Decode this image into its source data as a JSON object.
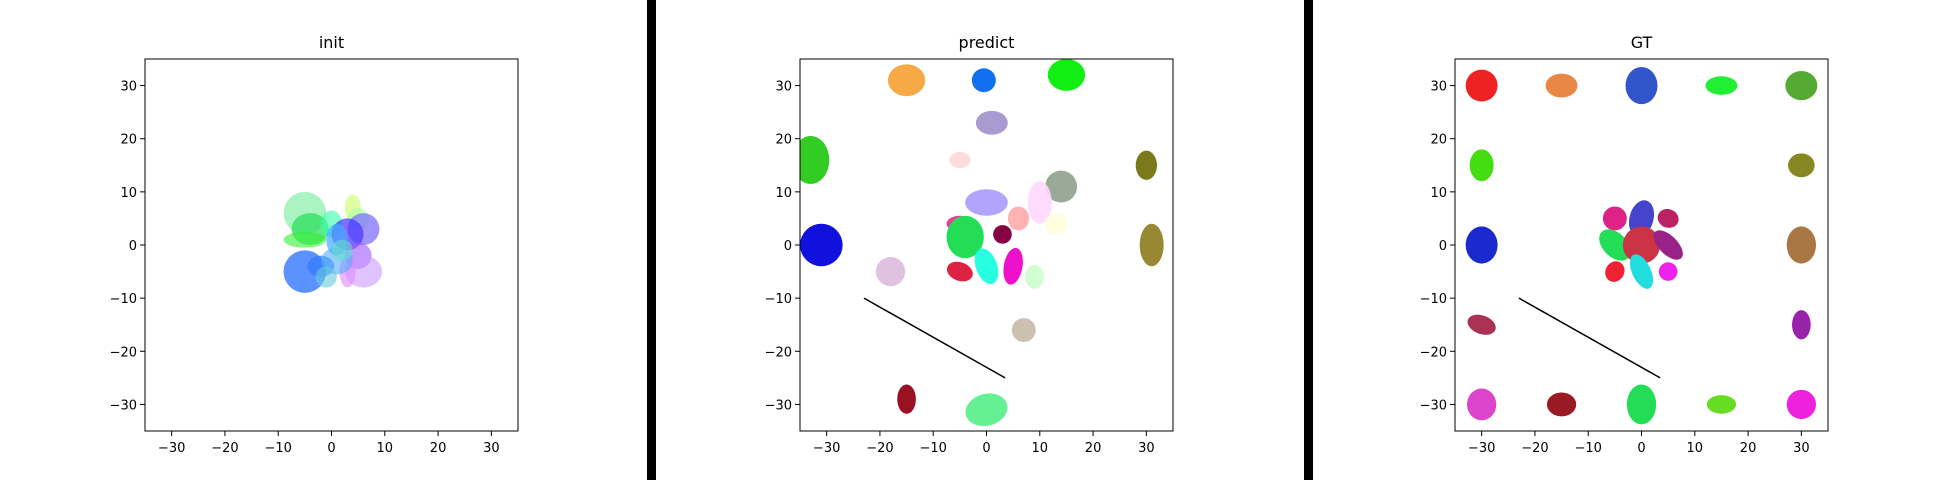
{
  "chart_data": [
    {
      "type": "scatter",
      "title": "init",
      "xlabel": "",
      "ylabel": "",
      "xlim": [
        -35,
        35
      ],
      "ylim": [
        -35,
        35
      ],
      "xticks": [
        -30,
        -20,
        -10,
        0,
        10,
        20,
        30
      ],
      "yticks": [
        -30,
        -20,
        -10,
        0,
        10,
        20,
        30
      ],
      "grid": false,
      "ellipses": [
        {
          "x": -5,
          "y": 6,
          "w": 8,
          "h": 8,
          "angle": 0,
          "color": "#88f0a8",
          "alpha": 0.7
        },
        {
          "x": -4,
          "y": 3,
          "w": 7,
          "h": 6,
          "angle": 0,
          "color": "#22dd55",
          "alpha": 0.7
        },
        {
          "x": 4,
          "y": 7,
          "w": 3,
          "h": 5,
          "angle": 0,
          "color": "#ccff66",
          "alpha": 0.6
        },
        {
          "x": 5,
          "y": 5,
          "w": 4,
          "h": 4,
          "angle": 0,
          "color": "#aaffaa",
          "alpha": 0.6
        },
        {
          "x": 0,
          "y": 4,
          "w": 4,
          "h": 5,
          "angle": 0,
          "color": "#33ffaa",
          "alpha": 0.6
        },
        {
          "x": -5,
          "y": 1,
          "w": 8,
          "h": 3,
          "angle": 0,
          "color": "#33ee33",
          "alpha": 0.6
        },
        {
          "x": 6,
          "y": 3,
          "w": 6,
          "h": 6,
          "angle": 0,
          "color": "#7766ff",
          "alpha": 0.7
        },
        {
          "x": 3,
          "y": 2,
          "w": 6,
          "h": 6,
          "angle": 0,
          "color": "#4433ff",
          "alpha": 0.7
        },
        {
          "x": 1,
          "y": 1,
          "w": 4,
          "h": 6,
          "angle": 0,
          "color": "#44aaff",
          "alpha": 0.7
        },
        {
          "x": 5,
          "y": -2,
          "w": 5,
          "h": 5,
          "angle": 0,
          "color": "#9955ff",
          "alpha": 0.6
        },
        {
          "x": 6,
          "y": -5,
          "w": 7,
          "h": 6,
          "angle": 0,
          "color": "#cc99ff",
          "alpha": 0.6
        },
        {
          "x": 3,
          "y": -5,
          "w": 3,
          "h": 6,
          "angle": 0,
          "color": "#dd88ff",
          "alpha": 0.6
        },
        {
          "x": -2,
          "y": -4,
          "w": 5,
          "h": 4,
          "angle": 0,
          "color": "#2288ee",
          "alpha": 0.7
        },
        {
          "x": -5,
          "y": -5,
          "w": 8,
          "h": 8,
          "angle": 0,
          "color": "#3377ff",
          "alpha": 0.8
        },
        {
          "x": 1,
          "y": -3,
          "w": 6,
          "h": 5,
          "angle": 0,
          "color": "#55aaff",
          "alpha": 0.6
        },
        {
          "x": -1,
          "y": -6,
          "w": 4,
          "h": 4,
          "angle": 0,
          "color": "#66ccdd",
          "alpha": 0.6
        },
        {
          "x": 2,
          "y": -1,
          "w": 4,
          "h": 4,
          "angle": 0,
          "color": "#66ddcc",
          "alpha": 0.6
        }
      ],
      "lines": []
    },
    {
      "type": "scatter",
      "title": "predict",
      "xlabel": "",
      "ylabel": "",
      "xlim": [
        -35,
        35
      ],
      "ylim": [
        -35,
        35
      ],
      "xticks": [
        -30,
        -20,
        -10,
        0,
        10,
        20,
        30
      ],
      "yticks": [
        -30,
        -20,
        -10,
        0,
        10,
        20,
        30
      ],
      "grid": false,
      "ellipses": [
        {
          "x": -15,
          "y": 31,
          "w": 7,
          "h": 6,
          "angle": 0,
          "color": "#f5a030",
          "alpha": 0.9
        },
        {
          "x": -0.5,
          "y": 31,
          "w": 4.5,
          "h": 4.5,
          "angle": 0,
          "color": "#1170ee",
          "alpha": 1.0
        },
        {
          "x": 15,
          "y": 32,
          "w": 7,
          "h": 6,
          "angle": 0,
          "color": "#11ee11",
          "alpha": 1.0
        },
        {
          "x": 1,
          "y": 23,
          "w": 6,
          "h": 4.5,
          "angle": 0,
          "color": "#a090cc",
          "alpha": 0.9
        },
        {
          "x": -5,
          "y": 16,
          "w": 4,
          "h": 3,
          "angle": 0,
          "color": "#ffd8d8",
          "alpha": 0.9
        },
        {
          "x": -33,
          "y": 16,
          "w": 7,
          "h": 9,
          "angle": 0,
          "color": "#33cc22",
          "alpha": 1.0
        },
        {
          "x": 30,
          "y": 15,
          "w": 4,
          "h": 5.5,
          "angle": 0,
          "color": "#7a7a1a",
          "alpha": 1.0
        },
        {
          "x": 14,
          "y": 11,
          "w": 6,
          "h": 6,
          "angle": 0,
          "color": "#99aa99",
          "alpha": 1.0
        },
        {
          "x": 10,
          "y": 8,
          "w": 4.5,
          "h": 8,
          "angle": 0,
          "color": "#ffd8ff",
          "alpha": 0.9
        },
        {
          "x": 0,
          "y": 8,
          "w": 8,
          "h": 5,
          "angle": 0,
          "color": "#aa99ff",
          "alpha": 0.9
        },
        {
          "x": 13,
          "y": 4,
          "w": 4,
          "h": 4,
          "angle": 0,
          "color": "#ffffdd",
          "alpha": 0.9
        },
        {
          "x": 6,
          "y": 5,
          "w": 4,
          "h": 4.5,
          "angle": 0,
          "color": "#ffaaaa",
          "alpha": 0.9
        },
        {
          "x": -5,
          "y": 4,
          "w": 5,
          "h": 3,
          "angle": 0,
          "color": "#ee2288",
          "alpha": 0.9
        },
        {
          "x": -4,
          "y": 1.5,
          "w": 7,
          "h": 8,
          "angle": 0,
          "color": "#22dd55",
          "alpha": 1.0
        },
        {
          "x": 3,
          "y": 2,
          "w": 3.5,
          "h": 3.5,
          "angle": 0,
          "color": "#880044",
          "alpha": 1.0
        },
        {
          "x": -31,
          "y": 0,
          "w": 8,
          "h": 8,
          "angle": 0,
          "color": "#1111dd",
          "alpha": 1.0
        },
        {
          "x": 31,
          "y": 0,
          "w": 4.5,
          "h": 8,
          "angle": 0,
          "color": "#998833",
          "alpha": 1.0
        },
        {
          "x": -18,
          "y": -5,
          "w": 5.5,
          "h": 5.5,
          "angle": 0,
          "color": "#ddbbdd",
          "alpha": 0.9
        },
        {
          "x": -5,
          "y": -5,
          "w": 5,
          "h": 3.5,
          "angle": -20,
          "color": "#dd2244",
          "alpha": 1.0
        },
        {
          "x": 0,
          "y": -4,
          "w": 4,
          "h": 7,
          "angle": 20,
          "color": "#11ffdd",
          "alpha": 0.9
        },
        {
          "x": 5,
          "y": -4,
          "w": 3.5,
          "h": 7,
          "angle": -10,
          "color": "#ee11cc",
          "alpha": 1.0
        },
        {
          "x": 9,
          "y": -6,
          "w": 3.5,
          "h": 4.5,
          "angle": 0,
          "color": "#ccffcc",
          "alpha": 0.9
        },
        {
          "x": 7,
          "y": -16,
          "w": 4.5,
          "h": 4.5,
          "angle": 0,
          "color": "#ccc0b0",
          "alpha": 1.0
        },
        {
          "x": -15,
          "y": -29,
          "w": 3.5,
          "h": 5.5,
          "angle": 0,
          "color": "#991122",
          "alpha": 1.0
        },
        {
          "x": 0,
          "y": -31,
          "w": 8,
          "h": 6,
          "angle": 15,
          "color": "#55ee88",
          "alpha": 0.9
        }
      ],
      "lines": [
        {
          "x": [
            -23,
            3.5
          ],
          "y": [
            -10,
            -25
          ],
          "color": "#000000"
        }
      ]
    },
    {
      "type": "scatter",
      "title": "GT",
      "xlabel": "",
      "ylabel": "",
      "xlim": [
        -35,
        35
      ],
      "ylim": [
        -35,
        35
      ],
      "xticks": [
        -30,
        -20,
        -10,
        0,
        10,
        20,
        30
      ],
      "yticks": [
        -30,
        -20,
        -10,
        0,
        10,
        20,
        30
      ],
      "grid": false,
      "ellipses": [
        {
          "x": -30,
          "y": 30,
          "w": 6,
          "h": 6,
          "angle": 0,
          "color": "#ee2222",
          "alpha": 1.0
        },
        {
          "x": -15,
          "y": 30,
          "w": 6,
          "h": 4.5,
          "angle": 0,
          "color": "#e88844",
          "alpha": 1.0
        },
        {
          "x": 0,
          "y": 30,
          "w": 6,
          "h": 7,
          "angle": 0,
          "color": "#3355cc",
          "alpha": 1.0
        },
        {
          "x": 15,
          "y": 30,
          "w": 6,
          "h": 3.5,
          "angle": 0,
          "color": "#22ee33",
          "alpha": 1.0
        },
        {
          "x": 30,
          "y": 30,
          "w": 6,
          "h": 5.5,
          "angle": 0,
          "color": "#55aa33",
          "alpha": 1.0
        },
        {
          "x": -30,
          "y": 15,
          "w": 4.5,
          "h": 6,
          "angle": 0,
          "color": "#44dd11",
          "alpha": 1.0
        },
        {
          "x": 30,
          "y": 15,
          "w": 5,
          "h": 4.5,
          "angle": 0,
          "color": "#888822",
          "alpha": 1.0
        },
        {
          "x": -5,
          "y": 5,
          "w": 4.5,
          "h": 4.5,
          "angle": 0,
          "color": "#dd2288",
          "alpha": 1.0
        },
        {
          "x": 0,
          "y": 5,
          "w": 4.5,
          "h": 7,
          "angle": -15,
          "color": "#4444cc",
          "alpha": 1.0
        },
        {
          "x": 5,
          "y": 5,
          "w": 4,
          "h": 3.5,
          "angle": -20,
          "color": "#bb2266",
          "alpha": 1.0
        },
        {
          "x": -5,
          "y": 0,
          "w": 4.5,
          "h": 7,
          "angle": 45,
          "color": "#22dd55",
          "alpha": 1.0
        },
        {
          "x": 0,
          "y": 0,
          "w": 7,
          "h": 7,
          "angle": 0,
          "color": "#cc3344",
          "alpha": 1.0
        },
        {
          "x": 5,
          "y": 0,
          "w": 3.5,
          "h": 7,
          "angle": 45,
          "color": "#992288",
          "alpha": 1.0
        },
        {
          "x": -30,
          "y": 0,
          "w": 6,
          "h": 7,
          "angle": 0,
          "color": "#1a2acc",
          "alpha": 1.0
        },
        {
          "x": 30,
          "y": 0,
          "w": 5.5,
          "h": 7,
          "angle": 0,
          "color": "#aa7744",
          "alpha": 1.0
        },
        {
          "x": -5,
          "y": -5,
          "w": 3.5,
          "h": 4,
          "angle": -30,
          "color": "#ee2233",
          "alpha": 1.0
        },
        {
          "x": 0,
          "y": -5,
          "w": 3.5,
          "h": 7,
          "angle": 25,
          "color": "#22dddd",
          "alpha": 1.0
        },
        {
          "x": 5,
          "y": -5,
          "w": 3.5,
          "h": 3.5,
          "angle": 0,
          "color": "#ee22ee",
          "alpha": 1.0
        },
        {
          "x": -30,
          "y": -15,
          "w": 5.5,
          "h": 3.5,
          "angle": -20,
          "color": "#aa3355",
          "alpha": 1.0
        },
        {
          "x": 30,
          "y": -15,
          "w": 3.5,
          "h": 5.5,
          "angle": 0,
          "color": "#9922aa",
          "alpha": 1.0
        },
        {
          "x": -30,
          "y": -30,
          "w": 5.5,
          "h": 6,
          "angle": 0,
          "color": "#dd44cc",
          "alpha": 1.0
        },
        {
          "x": -15,
          "y": -30,
          "w": 5.5,
          "h": 4.5,
          "angle": 0,
          "color": "#991a22",
          "alpha": 1.0
        },
        {
          "x": 0,
          "y": -30,
          "w": 5.5,
          "h": 7.5,
          "angle": 0,
          "color": "#22dd55",
          "alpha": 1.0
        },
        {
          "x": 15,
          "y": -30,
          "w": 5.5,
          "h": 3.5,
          "angle": 0,
          "color": "#66dd22",
          "alpha": 1.0
        },
        {
          "x": 30,
          "y": -30,
          "w": 5.5,
          "h": 5.5,
          "angle": 0,
          "color": "#ee22dd",
          "alpha": 1.0
        }
      ],
      "lines": [
        {
          "x": [
            -23,
            3.5
          ],
          "y": [
            -10,
            -25
          ],
          "color": "#000000"
        }
      ]
    }
  ]
}
